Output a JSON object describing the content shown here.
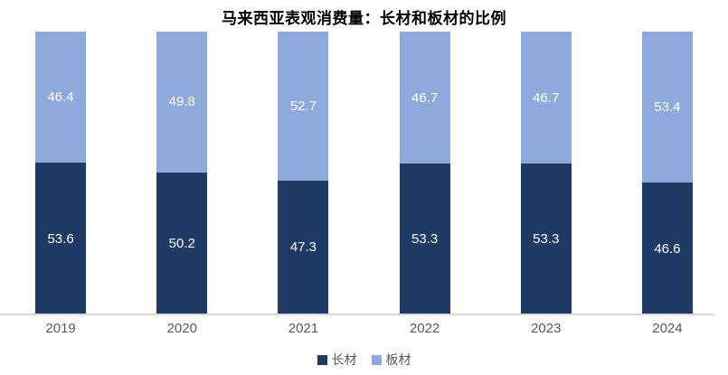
{
  "title": "马来西亚表观消费量：长材和板材的比例",
  "colors": {
    "long_products": "#1F3A64",
    "flat_products": "#8EA9DB",
    "axis_line": "#D9D9D9",
    "tick_text": "#595959",
    "value_label_text": "#FFFFFF",
    "title_text": "#000000"
  },
  "legend": {
    "items": [
      {
        "label": "长材",
        "color": "#1F3A64"
      },
      {
        "label": "板材",
        "color": "#8EA9DB"
      }
    ]
  },
  "chart_data": {
    "type": "bar",
    "subtype": "stacked-100-percent",
    "title": "马来西亚表观消费量：长材和板材的比例",
    "categories": [
      "2019",
      "2020",
      "2021",
      "2022",
      "2023",
      "2024"
    ],
    "series": [
      {
        "name": "长材",
        "color": "#1F3A64",
        "position": "bottom",
        "values": [
          53.6,
          50.2,
          47.3,
          53.3,
          53.3,
          46.6
        ]
      },
      {
        "name": "板材",
        "color": "#8EA9DB",
        "position": "top",
        "values": [
          46.4,
          49.8,
          52.7,
          46.7,
          46.7,
          53.4
        ]
      }
    ],
    "xlabel": "",
    "ylabel": "",
    "ylim": [
      0,
      100
    ],
    "grid": false,
    "y_axis_visible": false,
    "data_labels": true,
    "legend_position": "bottom"
  }
}
